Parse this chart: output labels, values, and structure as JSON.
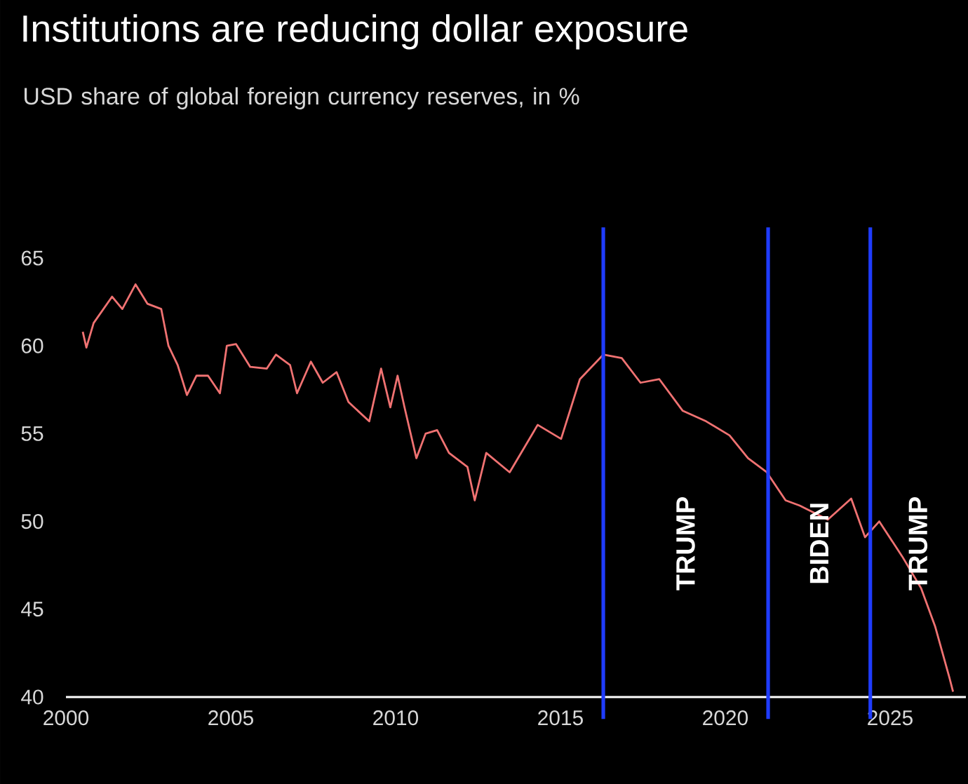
{
  "chart_data": {
    "type": "line",
    "title": "Institutions are reducing dollar exposure",
    "subtitle": "USD share of global foreign currency reserves, in %",
    "x": [
      2000.51,
      2000.62,
      2000.84,
      2001.4,
      2001.71,
      2002.11,
      2002.47,
      2002.89,
      2003.11,
      2003.39,
      2003.67,
      2003.96,
      2004.31,
      2004.67,
      2004.88,
      2005.16,
      2005.59,
      2006.09,
      2006.37,
      2006.8,
      2007.01,
      2007.43,
      2007.79,
      2008.21,
      2008.57,
      2009.2,
      2009.56,
      2009.84,
      2010.06,
      2010.27,
      2010.63,
      2010.91,
      2011.26,
      2011.62,
      2012.18,
      2012.4,
      2012.75,
      2013.46,
      2014.31,
      2015.02,
      2015.59,
      2016.3,
      2016.86,
      2017.43,
      2018.0,
      2018.71,
      2019.42,
      2020.13,
      2020.69,
      2021.26,
      2021.83,
      2022.26,
      2023.11,
      2023.82,
      2024.24,
      2024.67,
      2025.37,
      2025.94,
      2026.37,
      2026.8,
      2026.91
    ],
    "series": [
      {
        "color": "#f07272",
        "values": [
          60.8,
          59.9,
          61.3,
          62.8,
          62.1,
          63.5,
          62.4,
          62.1,
          60.0,
          58.9,
          57.2,
          58.3,
          58.3,
          57.3,
          60.0,
          60.1,
          58.8,
          58.7,
          59.5,
          58.9,
          57.3,
          59.1,
          57.9,
          58.5,
          56.8,
          55.7,
          58.7,
          56.5,
          58.3,
          56.5,
          53.6,
          55.0,
          55.2,
          53.9,
          53.1,
          51.2,
          53.9,
          52.8,
          55.5,
          54.7,
          58.1,
          59.5,
          59.3,
          57.9,
          58.1,
          56.3,
          55.7,
          54.9,
          53.6,
          52.8,
          51.2,
          50.9,
          50.1,
          51.3,
          49.1,
          50.0,
          48.0,
          46.2,
          44.0,
          41.1,
          40.3
        ]
      }
    ],
    "xlim": [
      2000,
      2027.3
    ],
    "ylim": [
      40,
      65
    ],
    "xticks": [
      2000,
      2005,
      2010,
      2015,
      2020,
      2025
    ],
    "yticks": [
      40,
      45,
      50,
      55,
      60,
      65
    ],
    "ref_lines": [
      {
        "axis": "x",
        "value": 2016.3,
        "label": "TRUMP",
        "color": "#1f3cff"
      },
      {
        "axis": "x",
        "value": 2021.3,
        "label": "BIDEN",
        "color": "#1f3cff"
      },
      {
        "axis": "x",
        "value": 2024.4,
        "label": "TRUMP",
        "color": "#1f3cff"
      }
    ],
    "marker": "none",
    "line_style": "solid"
  }
}
